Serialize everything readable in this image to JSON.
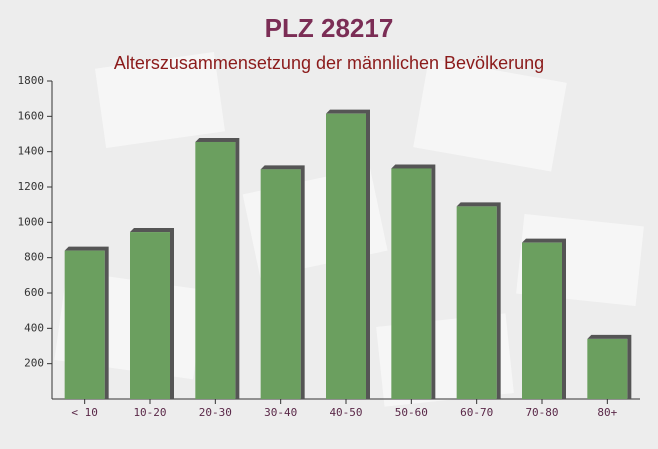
{
  "chart_data": {
    "type": "bar",
    "title": "PLZ 28217",
    "subtitle": "Alterszusammensetzung der männlichen Bevölkerung",
    "categories": [
      "< 10",
      "10-20",
      "20-30",
      "30-40",
      "40-50",
      "50-60",
      "60-70",
      "70-80",
      "80+"
    ],
    "values": [
      840,
      945,
      1455,
      1300,
      1615,
      1305,
      1090,
      885,
      340
    ],
    "color": "#6b9f5f",
    "ylim": [
      0,
      1800
    ],
    "yticks": [
      200,
      400,
      600,
      800,
      1000,
      1200,
      1400,
      1600,
      1800
    ],
    "grid": false
  }
}
